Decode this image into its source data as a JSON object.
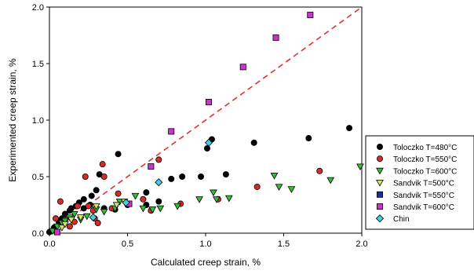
{
  "chart_data": {
    "type": "scatter",
    "title": "",
    "xlabel": "Calculated creep strain, %",
    "ylabel": "Experimented creep strain, %",
    "xlim": [
      0,
      2.0
    ],
    "ylim": [
      0,
      2.0
    ],
    "x_ticks": [
      "0.0",
      "0.5",
      "1.0",
      "1.5",
      "2.0"
    ],
    "y_ticks": [
      "0.0",
      "0.5",
      "1.0",
      "1.5",
      "2.0"
    ],
    "grid": false,
    "legend_position": "right",
    "reference_line": {
      "type": "y=x",
      "style": "dashed",
      "color": "#e03030"
    },
    "series": [
      {
        "name": "Toloczko T=480°C",
        "marker": "circle",
        "color": "#000000",
        "points": [
          [
            0.0,
            0.01
          ],
          [
            0.03,
            0.05
          ],
          [
            0.06,
            0.1
          ],
          [
            0.08,
            0.13
          ],
          [
            0.1,
            0.17
          ],
          [
            0.13,
            0.2
          ],
          [
            0.14,
            0.22
          ],
          [
            0.17,
            0.24
          ],
          [
            0.19,
            0.27
          ],
          [
            0.22,
            0.3
          ],
          [
            0.22,
            0.22
          ],
          [
            0.26,
            0.25
          ],
          [
            0.27,
            0.33
          ],
          [
            0.3,
            0.38
          ],
          [
            0.32,
            0.52
          ],
          [
            0.35,
            0.22
          ],
          [
            0.42,
            0.21
          ],
          [
            0.44,
            0.7
          ],
          [
            0.5,
            0.25
          ],
          [
            0.62,
            0.36
          ],
          [
            0.62,
            0.25
          ],
          [
            0.7,
            0.28
          ],
          [
            0.78,
            0.48
          ],
          [
            0.85,
            0.5
          ],
          [
            0.97,
            0.5
          ],
          [
            1.01,
            0.75
          ],
          [
            1.04,
            0.83
          ],
          [
            1.13,
            0.52
          ],
          [
            1.31,
            0.8
          ],
          [
            1.66,
            0.84
          ],
          [
            1.92,
            0.93
          ]
        ]
      },
      {
        "name": "Toloczko T=550°C",
        "marker": "circle",
        "color": "#d42b2b",
        "points": [
          [
            0.04,
            0.13
          ],
          [
            0.07,
            0.28
          ],
          [
            0.1,
            0.12
          ],
          [
            0.13,
            0.06
          ],
          [
            0.16,
            0.1
          ],
          [
            0.18,
            0.24
          ],
          [
            0.23,
            0.5
          ],
          [
            0.25,
            0.24
          ],
          [
            0.28,
            0.2
          ],
          [
            0.29,
            0.13
          ],
          [
            0.31,
            0.09
          ],
          [
            0.34,
            0.61
          ],
          [
            0.35,
            0.5
          ],
          [
            0.4,
            0.22
          ],
          [
            0.44,
            0.35
          ],
          [
            0.6,
            0.3
          ],
          [
            0.65,
            0.2
          ],
          [
            0.7,
            0.65
          ],
          [
            0.84,
            0.26
          ],
          [
            1.08,
            0.3
          ],
          [
            1.33,
            0.41
          ],
          [
            1.73,
            0.55
          ]
        ]
      },
      {
        "name": "Toloczko T=600°C",
        "marker": "triangle-down",
        "color": "#30c030",
        "points": [
          [
            0.02,
            0.02
          ],
          [
            0.05,
            0.06
          ],
          [
            0.08,
            0.09
          ],
          [
            0.1,
            0.11
          ],
          [
            0.13,
            0.14
          ],
          [
            0.16,
            0.17
          ],
          [
            0.2,
            0.12
          ],
          [
            0.24,
            0.15
          ],
          [
            0.3,
            0.21
          ],
          [
            0.35,
            0.19
          ],
          [
            0.42,
            0.22
          ],
          [
            0.45,
            0.28
          ],
          [
            0.55,
            0.33
          ],
          [
            0.6,
            0.22
          ],
          [
            0.66,
            0.21
          ],
          [
            0.71,
            0.22
          ],
          [
            0.82,
            0.24
          ],
          [
            0.96,
            0.3
          ],
          [
            1.05,
            0.36
          ],
          [
            1.07,
            0.3
          ],
          [
            1.15,
            0.31
          ],
          [
            1.44,
            0.51
          ],
          [
            1.47,
            0.41
          ],
          [
            1.55,
            0.39
          ],
          [
            1.8,
            0.47
          ],
          [
            1.99,
            0.59
          ]
        ]
      },
      {
        "name": "Sandvik T=500°C",
        "marker": "triangle-down",
        "color": "#d8e070",
        "points": [
          [
            0.08,
            0.05
          ],
          [
            0.1,
            0.08
          ],
          [
            0.14,
            0.12
          ],
          [
            0.2,
            0.14
          ],
          [
            0.3,
            0.24
          ],
          [
            0.43,
            0.25
          ],
          [
            0.48,
            0.28
          ]
        ]
      },
      {
        "name": "Sandvik T=550°C",
        "marker": "square",
        "color": "#1a2fa0",
        "points": []
      },
      {
        "name": "Sandvik T=600°C",
        "marker": "square",
        "color": "#cc33cc",
        "points": [
          [
            0.05,
            0.01
          ],
          [
            0.51,
            0.26
          ],
          [
            0.65,
            0.59
          ],
          [
            0.78,
            0.9
          ],
          [
            1.02,
            1.16
          ],
          [
            1.24,
            1.47
          ],
          [
            1.45,
            1.73
          ],
          [
            1.67,
            1.93
          ]
        ]
      },
      {
        "name": "Chin",
        "marker": "diamond",
        "color": "#40d0e8",
        "points": [
          [
            0.28,
            0.14
          ],
          [
            0.49,
            0.27
          ],
          [
            0.7,
            0.45
          ],
          [
            1.02,
            0.8
          ]
        ]
      }
    ]
  }
}
